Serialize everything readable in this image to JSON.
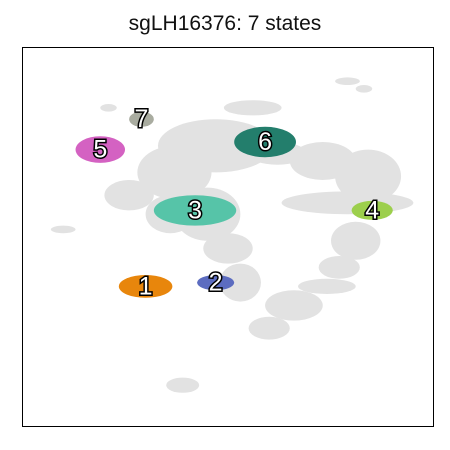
{
  "chart_data": {
    "type": "scatter",
    "title": "sgLH16376: 7 states",
    "xlabel": "",
    "ylabel": "",
    "grid": false,
    "legend": "none",
    "axis_ticks": "none",
    "xlim": [
      0,
      100
    ],
    "ylim": [
      0,
      100
    ],
    "background_color": "#e2e2e2",
    "background_regions": [
      {
        "x": 56,
        "y": 84,
        "rx": 7,
        "ry": 2
      },
      {
        "x": 47,
        "y": 74,
        "rx": 14,
        "ry": 7
      },
      {
        "x": 26,
        "y": 61,
        "rx": 6,
        "ry": 4
      },
      {
        "x": 37,
        "y": 67,
        "rx": 9,
        "ry": 7
      },
      {
        "x": 45,
        "y": 56,
        "rx": 8,
        "ry": 7
      },
      {
        "x": 36,
        "y": 56,
        "rx": 6,
        "ry": 5
      },
      {
        "x": 50,
        "y": 47,
        "rx": 6,
        "ry": 4
      },
      {
        "x": 53,
        "y": 38,
        "rx": 5,
        "ry": 5
      },
      {
        "x": 62,
        "y": 72,
        "rx": 7,
        "ry": 3
      },
      {
        "x": 73,
        "y": 70,
        "rx": 8,
        "ry": 5
      },
      {
        "x": 84,
        "y": 66,
        "rx": 8,
        "ry": 7
      },
      {
        "x": 79,
        "y": 59,
        "rx": 16,
        "ry": 3
      },
      {
        "x": 81,
        "y": 49,
        "rx": 6,
        "ry": 5
      },
      {
        "x": 77,
        "y": 42,
        "rx": 5,
        "ry": 3
      },
      {
        "x": 74,
        "y": 37,
        "rx": 7,
        "ry": 2
      },
      {
        "x": 66,
        "y": 32,
        "rx": 7,
        "ry": 4
      },
      {
        "x": 60,
        "y": 26,
        "rx": 5,
        "ry": 3
      },
      {
        "x": 10,
        "y": 52,
        "rx": 3,
        "ry": 1
      },
      {
        "x": 39,
        "y": 11,
        "rx": 4,
        "ry": 2
      },
      {
        "x": 79,
        "y": 91,
        "rx": 3,
        "ry": 1
      },
      {
        "x": 83,
        "y": 89,
        "rx": 2,
        "ry": 1
      },
      {
        "x": 21,
        "y": 84,
        "rx": 2,
        "ry": 1
      }
    ],
    "series": [
      {
        "label": "1",
        "color": "#e8860c",
        "x": 30,
        "y": 37,
        "rx": 6.5,
        "ry": 3
      },
      {
        "label": "2",
        "color": "#5c6cc0",
        "x": 47,
        "y": 38,
        "rx": 4.5,
        "ry": 2
      },
      {
        "label": "3",
        "color": "#56c4a8",
        "x": 42,
        "y": 57,
        "rx": 10,
        "ry": 4
      },
      {
        "label": "4",
        "color": "#9ccf4c",
        "x": 85,
        "y": 57,
        "rx": 5,
        "ry": 2.5
      },
      {
        "label": "5",
        "color": "#d462c2",
        "x": 19,
        "y": 73,
        "rx": 6,
        "ry": 3.5
      },
      {
        "label": "6",
        "color": "#237e6c",
        "x": 59,
        "y": 75,
        "rx": 7.5,
        "ry": 4
      },
      {
        "label": "7",
        "color": "#a9aca0",
        "x": 29,
        "y": 81,
        "rx": 3,
        "ry": 2
      }
    ]
  }
}
